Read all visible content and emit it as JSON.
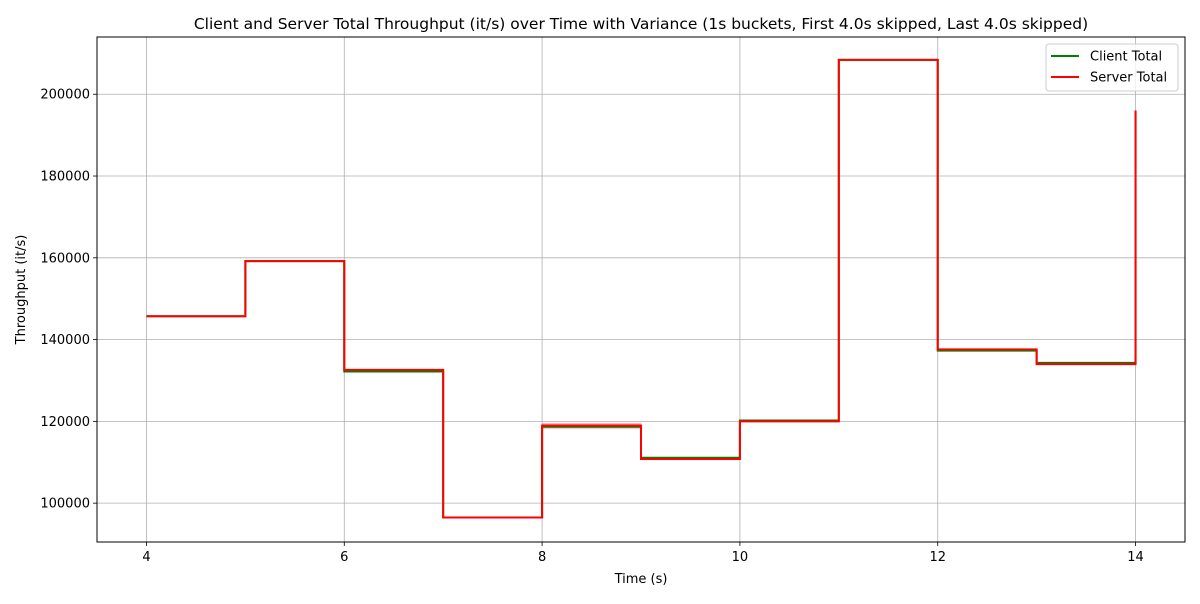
{
  "chart_data": {
    "type": "line",
    "step": "post",
    "title": "Client and Server Total Throughput (it/s) over Time with Variance (1s buckets, First 4.0s skipped, Last 4.0s skipped)",
    "xlabel": "Time (s)",
    "ylabel": "Throughput (it/s)",
    "xlim": [
      3.5,
      14.5
    ],
    "ylim": [
      90500,
      214000
    ],
    "xticks": [
      4,
      6,
      8,
      10,
      12,
      14
    ],
    "yticks": [
      100000,
      120000,
      140000,
      160000,
      180000,
      200000
    ],
    "grid": true,
    "legend": "top-right",
    "x": [
      4,
      5,
      6,
      7,
      8,
      9,
      10,
      11,
      12,
      13,
      14
    ],
    "series": [
      {
        "name": "Client Total",
        "color": "#008000",
        "values": [
          145700,
          159200,
          132200,
          96500,
          118700,
          111100,
          120200,
          208400,
          137300,
          134300,
          196000
        ]
      },
      {
        "name": "Server Total",
        "color": "#ff0000",
        "values": [
          145700,
          159200,
          132600,
          96500,
          119000,
          110800,
          120000,
          208400,
          137600,
          134000,
          196000
        ]
      }
    ],
    "variance_bands": [
      {
        "series": "Server Total",
        "x": [
          8,
          9
        ],
        "low": 118200,
        "high": 119600
      }
    ]
  }
}
